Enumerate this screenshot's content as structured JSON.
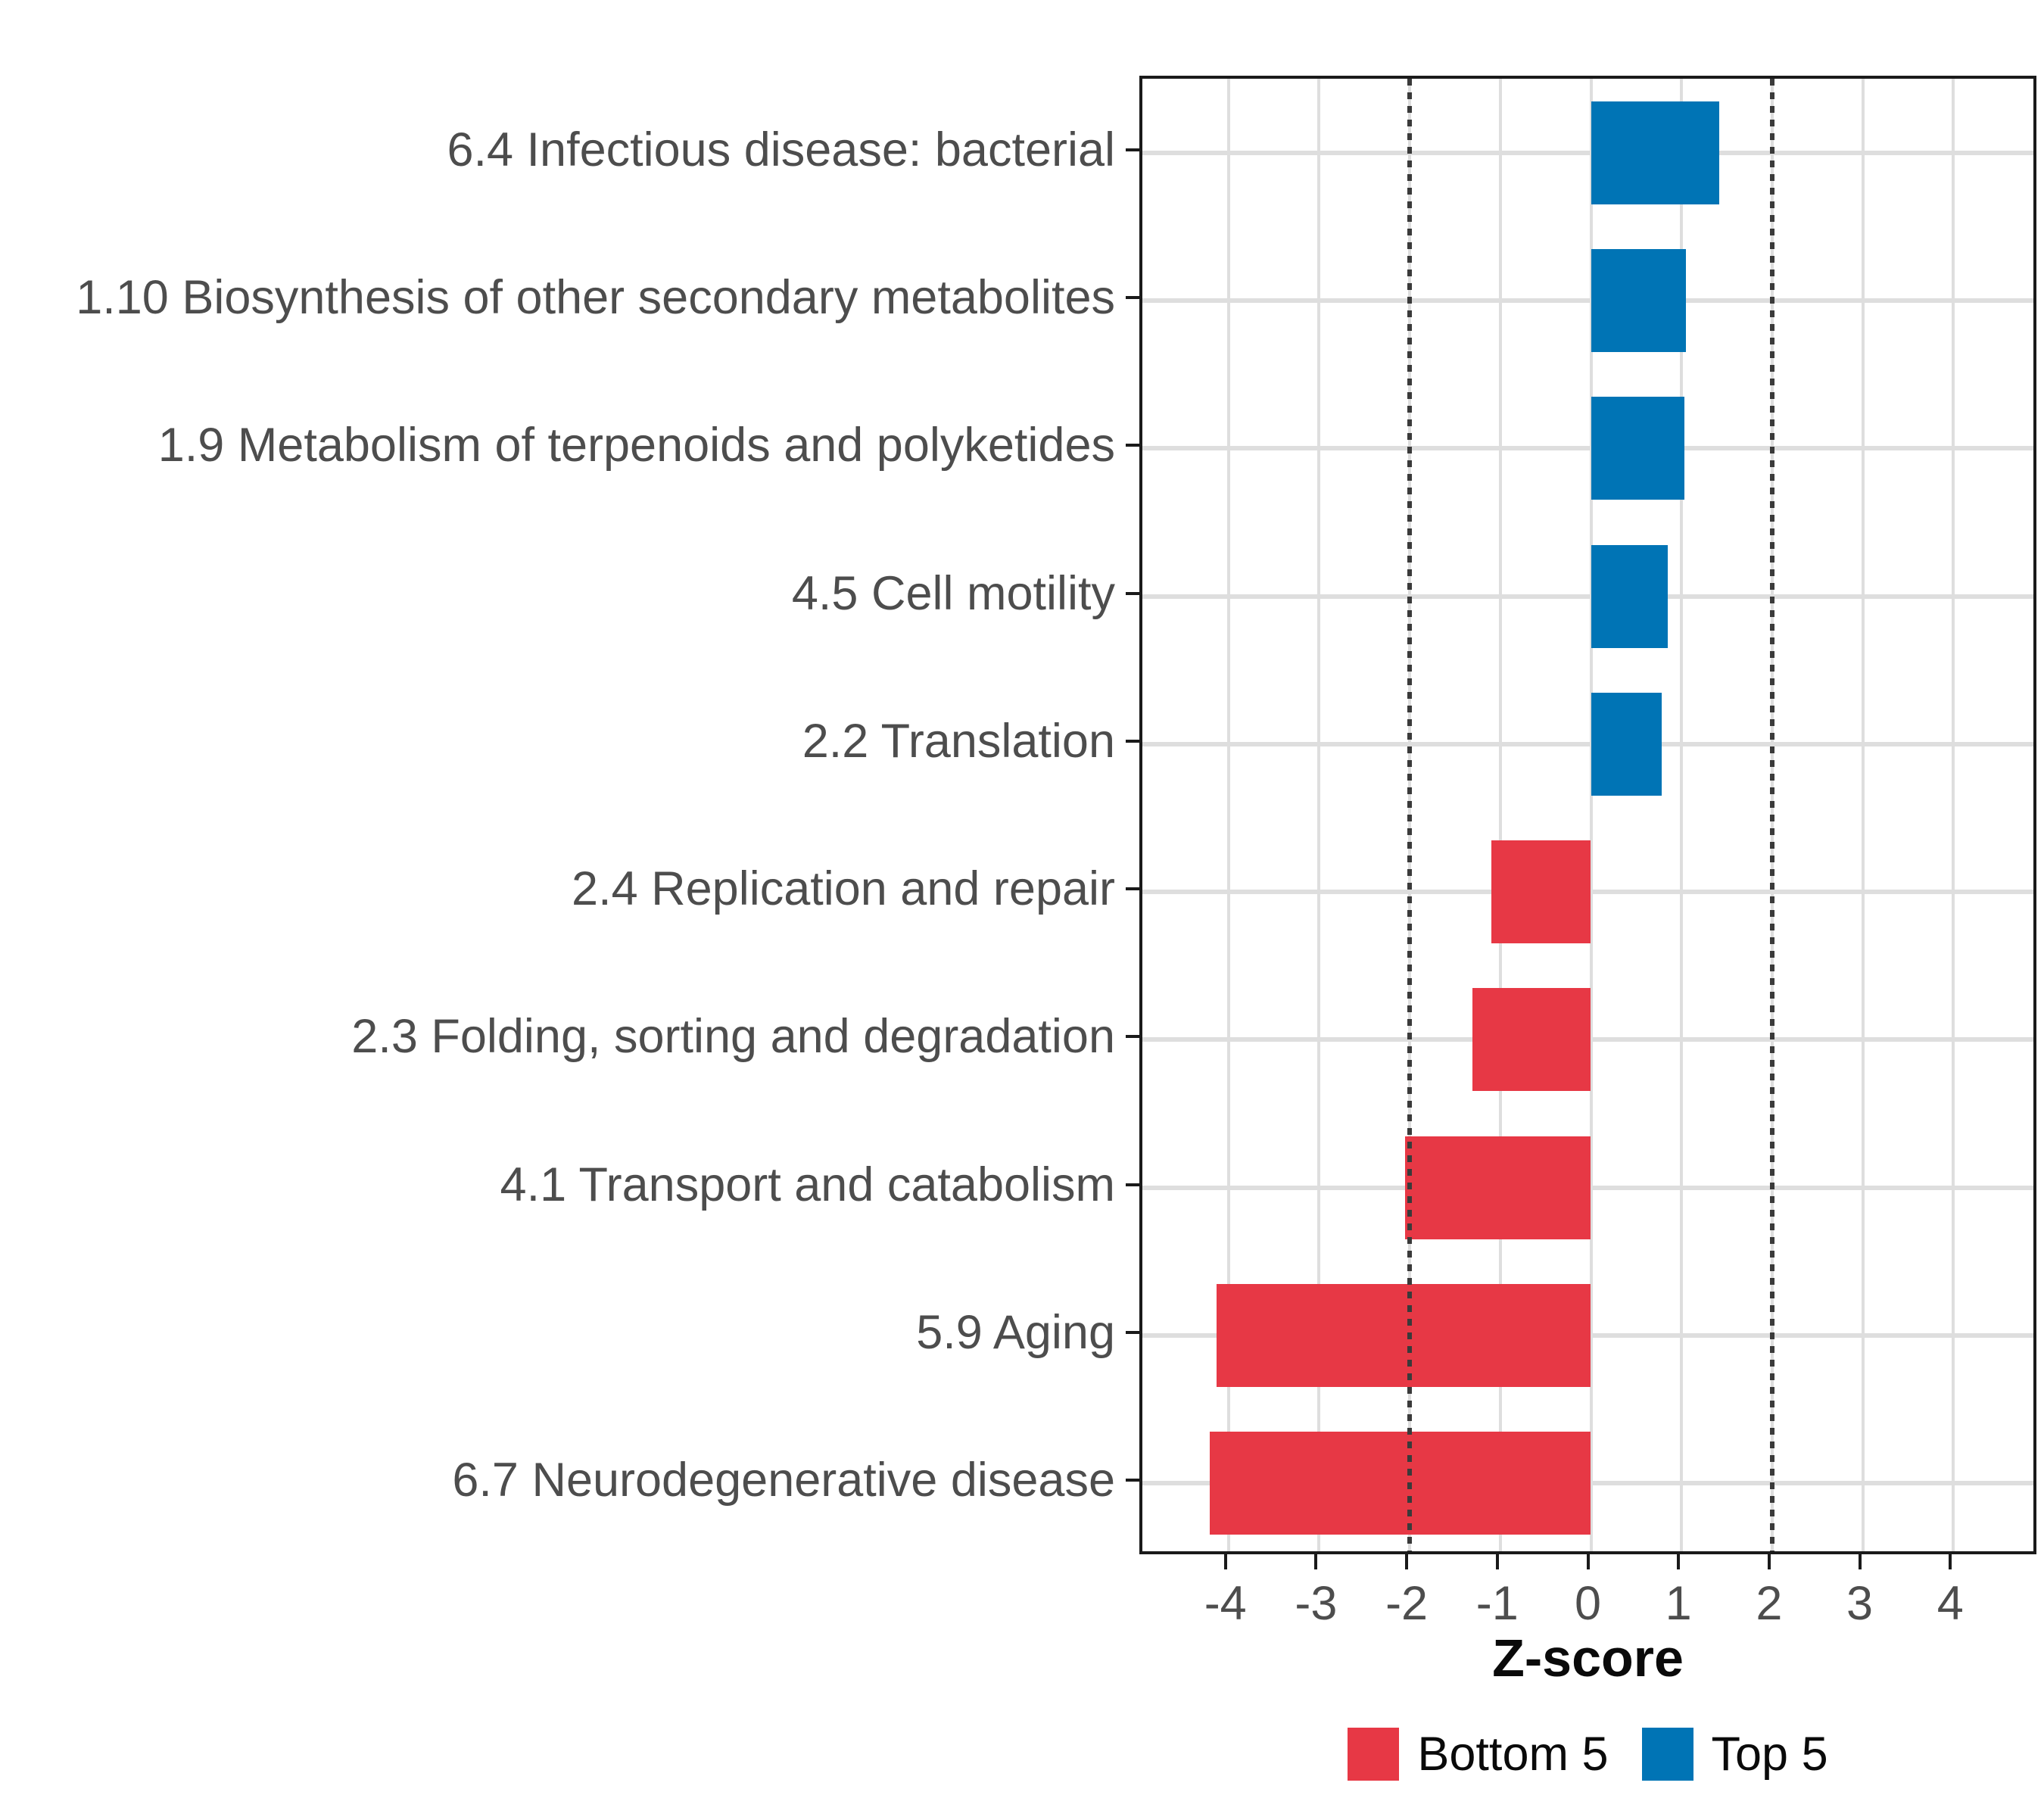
{
  "chart_data": {
    "type": "bar",
    "orientation": "horizontal",
    "title": "",
    "xlabel": "Z-score",
    "ylabel": "",
    "xlim": [
      -4.95,
      4.95
    ],
    "x_ticks": [
      -4,
      -3,
      -2,
      -1,
      0,
      1,
      2,
      3,
      4
    ],
    "reference_lines": {
      "x": [
        -2,
        2
      ],
      "style": "dotted"
    },
    "grid": "major vertical at integers, horizontal line at each category",
    "legend_position": "bottom",
    "legend": {
      "entries": [
        {
          "label": "Bottom 5",
          "color": "#E73845"
        },
        {
          "label": "Top 5",
          "color": "#0074B5"
        }
      ]
    },
    "categories": [
      {
        "label": "6.4 Infectious disease: bacterial",
        "value": 1.42,
        "group": "Top 5"
      },
      {
        "label": "1.10 Biosynthesis of other secondary metabolites",
        "value": 1.05,
        "group": "Top 5"
      },
      {
        "label": "1.9 Metabolism of terpenoids and polyketides",
        "value": 1.03,
        "group": "Top 5"
      },
      {
        "label": "4.5 Cell motility",
        "value": 0.85,
        "group": "Top 5"
      },
      {
        "label": "2.2 Translation",
        "value": 0.78,
        "group": "Top 5"
      },
      {
        "label": "2.4 Replication and repair",
        "value": -1.1,
        "group": "Bottom 5"
      },
      {
        "label": "2.3 Folding, sorting and degradation",
        "value": -1.31,
        "group": "Bottom 5"
      },
      {
        "label": "4.1 Transport and catabolism",
        "value": -2.05,
        "group": "Bottom 5"
      },
      {
        "label": "5.9 Aging",
        "value": -4.13,
        "group": "Bottom 5"
      },
      {
        "label": "6.7 Neurodegenerative disease",
        "value": -4.21,
        "group": "Bottom 5"
      }
    ]
  },
  "colors": {
    "bar_negative": "#E73845",
    "bar_positive": "#0074B5",
    "gridline": "#dedede",
    "reference_line": "#3a3a3a",
    "panel_border": "#1a1a1a",
    "axis_text": "#4d4d4d",
    "title_text": "#0a0a0a",
    "background": "#ffffff"
  }
}
